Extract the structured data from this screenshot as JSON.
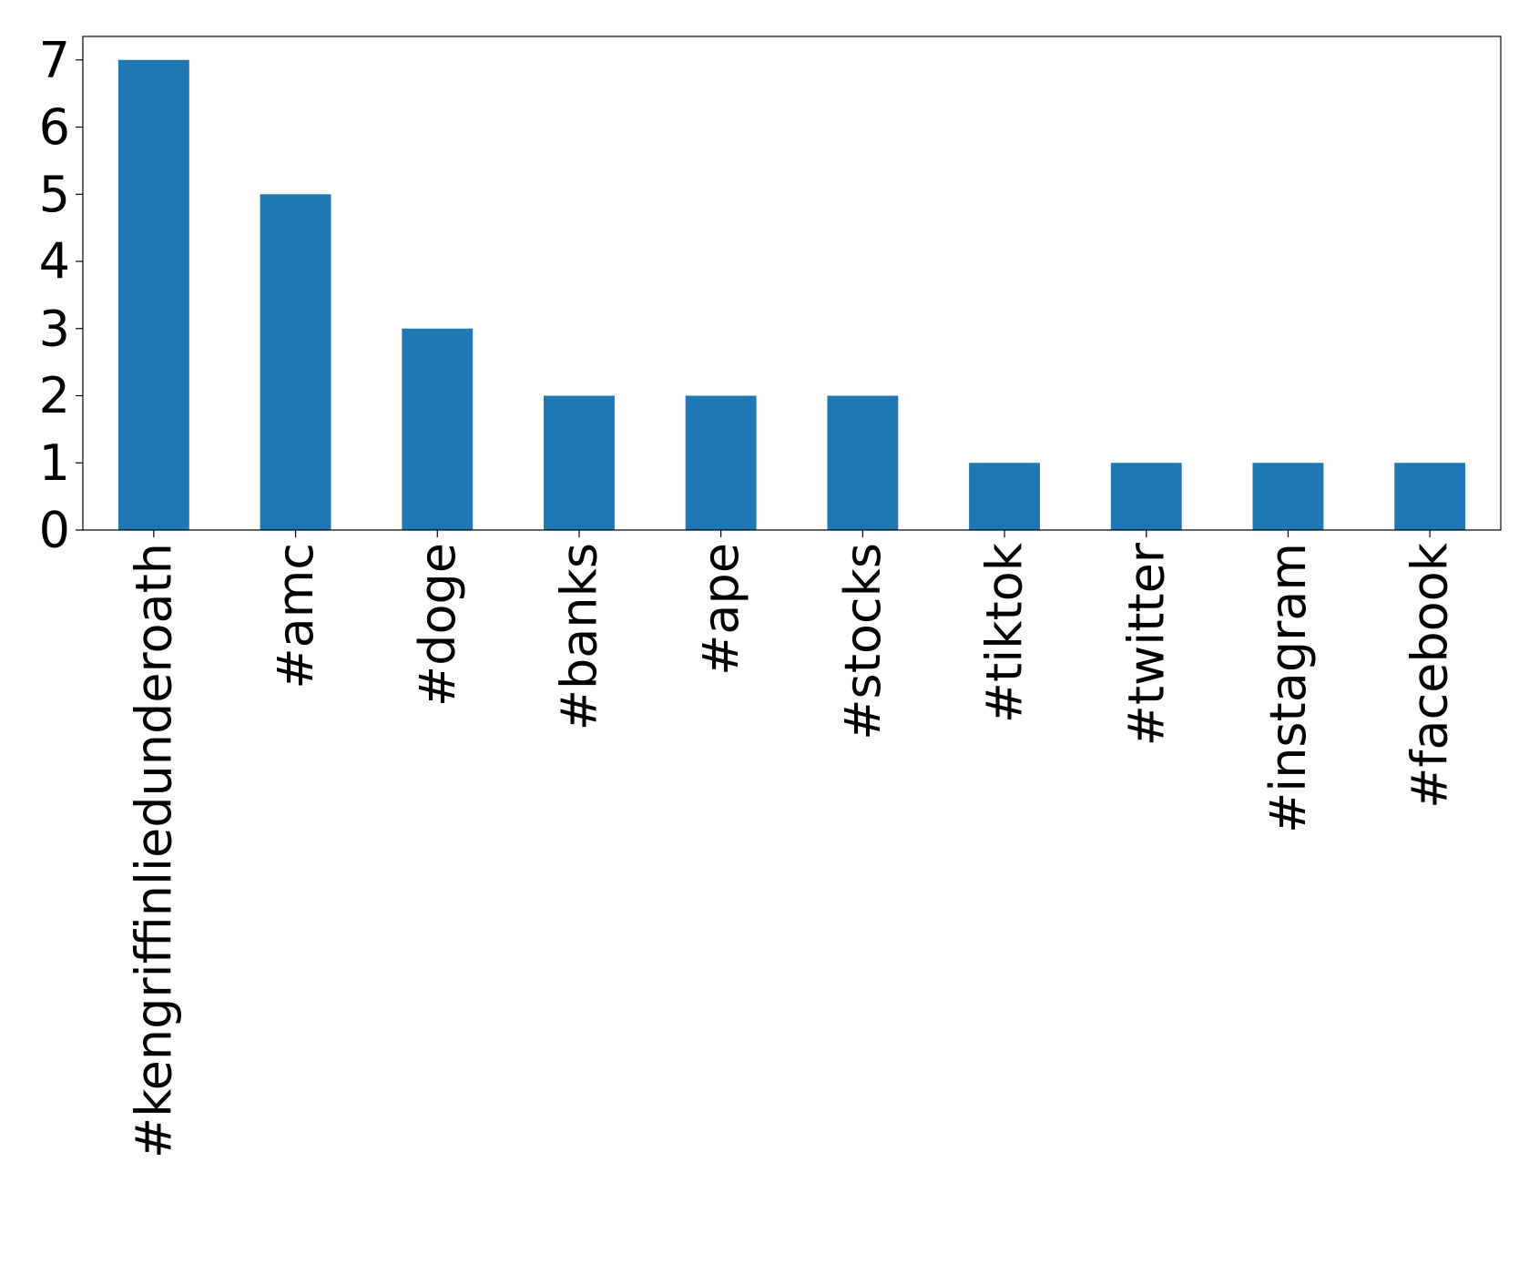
{
  "chart_data": {
    "type": "bar",
    "categories": [
      "#kengriffinliedunderoath",
      "#amc",
      "#doge",
      "#banks",
      "#ape",
      "#stocks",
      "#tiktok",
      "#twitter",
      "#instagram",
      "#facebook"
    ],
    "values": [
      7,
      5,
      3,
      2,
      2,
      2,
      1,
      1,
      1,
      1
    ],
    "color": "#1f77b4",
    "ylim": [
      0,
      7.35
    ],
    "yticks": [
      0,
      1,
      2,
      3,
      4,
      5,
      6,
      7
    ],
    "grid": false
  }
}
